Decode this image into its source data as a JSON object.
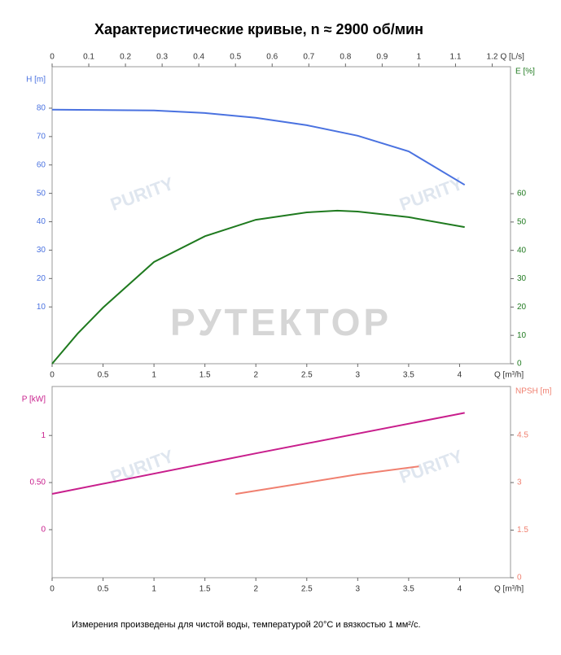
{
  "title": "Характеристические кривые, n ≈ 2900 об/мин",
  "footnote": "Измерения произведены для чистой воды, температурой 20°C и вязкостью 1 мм²/с.",
  "watermark": "РУТЕКТОР",
  "logo_text": "PURITY",
  "chart_data": [
    {
      "type": "line",
      "xlabel": "Q [m³/h]",
      "xlim": [
        0,
        4.5
      ],
      "xticks": [
        0,
        0.5,
        1,
        1.5,
        2,
        2.5,
        3,
        3.5,
        4
      ],
      "x2label": "Q [L/s]",
      "x2lim": [
        0,
        1.25
      ],
      "x2ticks": [
        0,
        0.1,
        0.2,
        0.3,
        0.4,
        0.5,
        0.6,
        0.7,
        0.8,
        0.9,
        1,
        1.1,
        1.2
      ],
      "ylabel": "H [m]",
      "ylim": [
        -10,
        94.6
      ],
      "yticks": [
        10,
        20,
        30,
        40,
        50,
        60,
        70,
        80
      ],
      "y2label": "E [%]",
      "y2lim": [
        0,
        104.8
      ],
      "y2ticks": [
        0,
        10,
        20,
        30,
        40,
        50,
        60
      ],
      "series": [
        {
          "color": "#4a72e0",
          "x": [
            0,
            1,
            1.5,
            2,
            2.5,
            3,
            3.5,
            4.05
          ],
          "values": [
            79.5,
            79.2,
            78.3,
            76.6,
            74,
            70.3,
            64.8,
            53
          ]
        },
        {
          "color": "#1f7a1f",
          "axis": "y2",
          "x": [
            0,
            0.25,
            0.5,
            1,
            1.5,
            2,
            2.5,
            2.8,
            3,
            3.5,
            4.05
          ],
          "values": [
            0,
            10.6,
            19.8,
            35.9,
            45,
            50.8,
            53.4,
            54,
            53.7,
            51.7,
            48.2
          ]
        }
      ]
    },
    {
      "type": "line",
      "xlabel": "Q [m³/h]",
      "xlim": [
        0,
        4.5
      ],
      "xticks": [
        0,
        0.5,
        1,
        1.5,
        2,
        2.5,
        3,
        3.5,
        4
      ],
      "ylabel": "P [kW]",
      "ylim": [
        -0.51,
        1.52
      ],
      "yticks": [
        0,
        {
          "value": 0.5,
          "label": "0.50"
        },
        1
      ],
      "y2label": "NPSH [m]",
      "y2lim": [
        0,
        6.03
      ],
      "y2ticks": [
        0,
        1.5,
        3,
        4.5
      ],
      "series": [
        {
          "color": "#c81e8c",
          "x": [
            0,
            2,
            4.05
          ],
          "values": [
            0.38,
            0.81,
            1.24
          ]
        },
        {
          "color": "#f08070",
          "axis": "y2",
          "x": [
            1.8,
            2.5,
            3,
            3.6
          ],
          "values": [
            2.64,
            3.0,
            3.26,
            3.51
          ]
        }
      ]
    }
  ]
}
